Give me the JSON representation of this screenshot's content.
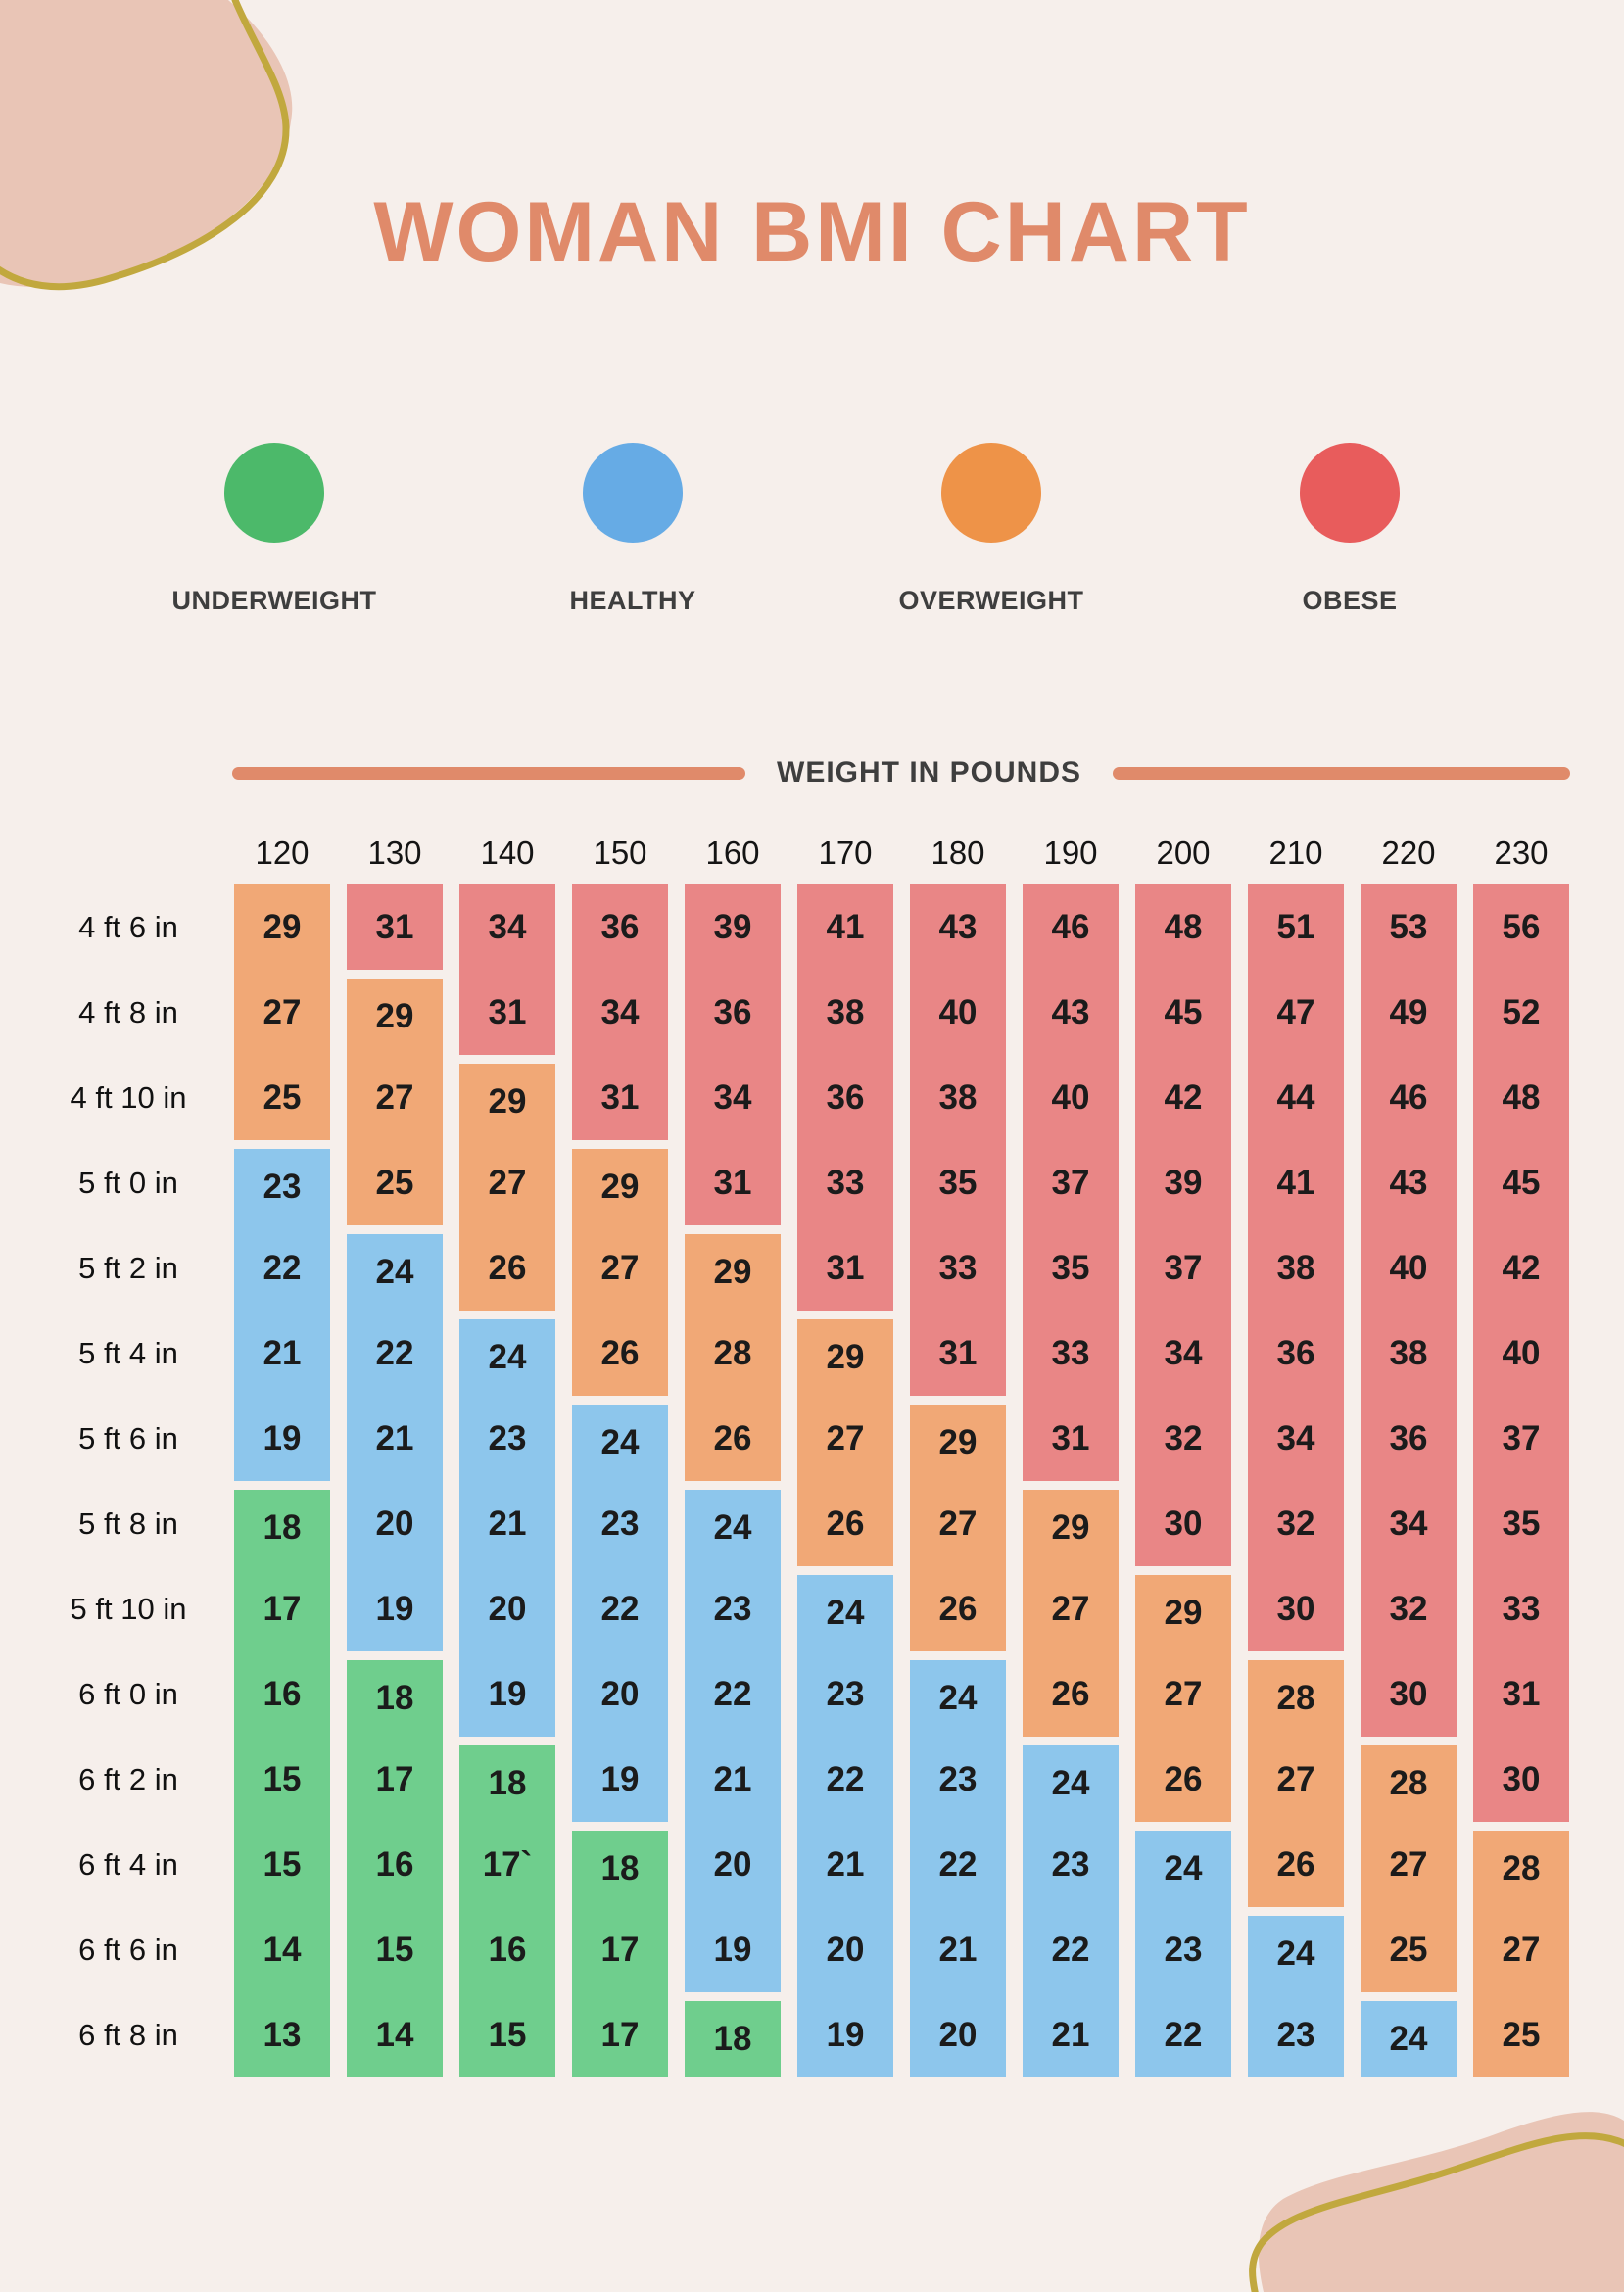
{
  "page": {
    "title": "WOMAN BMI CHART",
    "background": "#f6efeb"
  },
  "legend": [
    {
      "label": "UNDERWEIGHT",
      "key": "u",
      "color": "#4cb96a"
    },
    {
      "label": "HEALTHY",
      "key": "h",
      "color": "#66abe5"
    },
    {
      "label": "OVERWEIGHT",
      "key": "o",
      "color": "#ee9348"
    },
    {
      "label": "OBESE",
      "key": "b",
      "color": "#e85c5c"
    }
  ],
  "weight_header": {
    "label": "WEIGHT IN POUNDS",
    "line_color": "#e08a6a"
  },
  "chart_data": {
    "type": "heatmap",
    "title": "WOMAN BMI CHART",
    "x_axis_label": "WEIGHT IN POUNDS",
    "columns": [
      "120",
      "130",
      "140",
      "150",
      "160",
      "170",
      "180",
      "190",
      "200",
      "210",
      "220",
      "230"
    ],
    "category_names": {
      "u": "underweight",
      "h": "healthy",
      "o": "overweight",
      "b": "obese"
    },
    "cell_colors": {
      "u": "#6fce8d",
      "h": "#8dc6ec",
      "o": "#f1a876",
      "b": "#e98686"
    },
    "rows": [
      {
        "height": "4 ft 6 in",
        "values": [
          "29",
          "31",
          "34",
          "36",
          "39",
          "41",
          "43",
          "46",
          "48",
          "51",
          "53",
          "56"
        ],
        "cats": [
          "o",
          "b",
          "b",
          "b",
          "b",
          "b",
          "b",
          "b",
          "b",
          "b",
          "b",
          "b"
        ]
      },
      {
        "height": "4 ft 8 in",
        "values": [
          "27",
          "29",
          "31",
          "34",
          "36",
          "38",
          "40",
          "43",
          "45",
          "47",
          "49",
          "52"
        ],
        "cats": [
          "o",
          "o",
          "b",
          "b",
          "b",
          "b",
          "b",
          "b",
          "b",
          "b",
          "b",
          "b"
        ]
      },
      {
        "height": "4 ft 10 in",
        "values": [
          "25",
          "27",
          "29",
          "31",
          "34",
          "36",
          "38",
          "40",
          "42",
          "44",
          "46",
          "48"
        ],
        "cats": [
          "o",
          "o",
          "o",
          "b",
          "b",
          "b",
          "b",
          "b",
          "b",
          "b",
          "b",
          "b"
        ]
      },
      {
        "height": "5 ft 0 in",
        "values": [
          "23",
          "25",
          "27",
          "29",
          "31",
          "33",
          "35",
          "37",
          "39",
          "41",
          "43",
          "45"
        ],
        "cats": [
          "h",
          "o",
          "o",
          "o",
          "b",
          "b",
          "b",
          "b",
          "b",
          "b",
          "b",
          "b"
        ]
      },
      {
        "height": "5 ft 2 in",
        "values": [
          "22",
          "24",
          "26",
          "27",
          "29",
          "31",
          "33",
          "35",
          "37",
          "38",
          "40",
          "42"
        ],
        "cats": [
          "h",
          "h",
          "o",
          "o",
          "o",
          "b",
          "b",
          "b",
          "b",
          "b",
          "b",
          "b"
        ]
      },
      {
        "height": "5 ft 4 in",
        "values": [
          "21",
          "22",
          "24",
          "26",
          "28",
          "29",
          "31",
          "33",
          "34",
          "36",
          "38",
          "40"
        ],
        "cats": [
          "h",
          "h",
          "h",
          "o",
          "o",
          "o",
          "b",
          "b",
          "b",
          "b",
          "b",
          "b"
        ]
      },
      {
        "height": "5 ft 6 in",
        "values": [
          "19",
          "21",
          "23",
          "24",
          "26",
          "27",
          "29",
          "31",
          "32",
          "34",
          "36",
          "37"
        ],
        "cats": [
          "h",
          "h",
          "h",
          "h",
          "o",
          "o",
          "o",
          "b",
          "b",
          "b",
          "b",
          "b"
        ]
      },
      {
        "height": "5 ft 8 in",
        "values": [
          "18",
          "20",
          "21",
          "23",
          "24",
          "26",
          "27",
          "29",
          "30",
          "32",
          "34",
          "35"
        ],
        "cats": [
          "u",
          "h",
          "h",
          "h",
          "h",
          "o",
          "o",
          "o",
          "b",
          "b",
          "b",
          "b"
        ]
      },
      {
        "height": "5 ft 10 in",
        "values": [
          "17",
          "19",
          "20",
          "22",
          "23",
          "24",
          "26",
          "27",
          "29",
          "30",
          "32",
          "33"
        ],
        "cats": [
          "u",
          "h",
          "h",
          "h",
          "h",
          "h",
          "o",
          "o",
          "o",
          "b",
          "b",
          "b"
        ]
      },
      {
        "height": "6 ft 0 in",
        "values": [
          "16",
          "18",
          "19",
          "20",
          "22",
          "23",
          "24",
          "26",
          "27",
          "28",
          "30",
          "31"
        ],
        "cats": [
          "u",
          "u",
          "h",
          "h",
          "h",
          "h",
          "h",
          "o",
          "o",
          "o",
          "b",
          "b"
        ]
      },
      {
        "height": "6 ft 2 in",
        "values": [
          "15",
          "17",
          "18",
          "19",
          "21",
          "22",
          "23",
          "24",
          "26",
          "27",
          "28",
          "30"
        ],
        "cats": [
          "u",
          "u",
          "u",
          "h",
          "h",
          "h",
          "h",
          "h",
          "o",
          "o",
          "o",
          "b"
        ]
      },
      {
        "height": "6 ft 4 in",
        "values": [
          "15",
          "16",
          "17`",
          "18",
          "20",
          "21",
          "22",
          "23",
          "24",
          "26",
          "27",
          "28"
        ],
        "cats": [
          "u",
          "u",
          "u",
          "u",
          "h",
          "h",
          "h",
          "h",
          "h",
          "o",
          "o",
          "o"
        ]
      },
      {
        "height": "6 ft 6 in",
        "values": [
          "14",
          "15",
          "16",
          "17",
          "19",
          "20",
          "21",
          "22",
          "23",
          "24",
          "25",
          "27"
        ],
        "cats": [
          "u",
          "u",
          "u",
          "u",
          "h",
          "h",
          "h",
          "h",
          "h",
          "h",
          "o",
          "o"
        ]
      },
      {
        "height": "6 ft 8 in",
        "values": [
          "13",
          "14",
          "15",
          "17",
          "18",
          "19",
          "20",
          "21",
          "22",
          "23",
          "24",
          "25"
        ],
        "cats": [
          "u",
          "u",
          "u",
          "u",
          "u",
          "h",
          "h",
          "h",
          "h",
          "h",
          "h",
          "o"
        ]
      }
    ]
  },
  "decor": {
    "blob_color": "#e9c5b6",
    "line_color": "#c1a83e"
  }
}
